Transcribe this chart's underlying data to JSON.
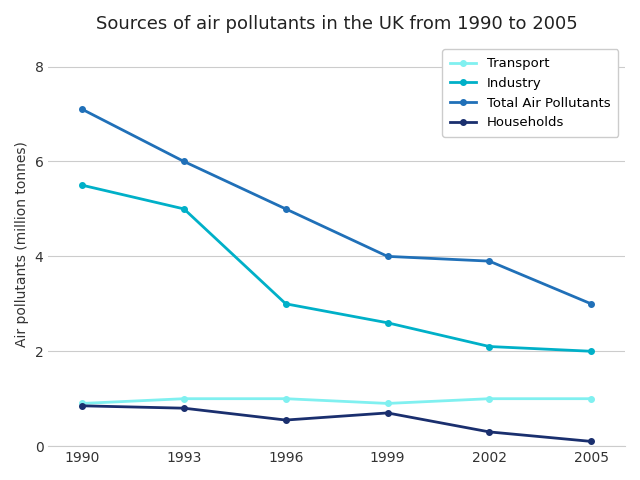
{
  "title": "Sources of air pollutants in the UK from 1990 to 2005",
  "xlabel": "",
  "ylabel": "Air pollutants (million tonnes)",
  "years": [
    1990,
    1993,
    1996,
    1999,
    2002,
    2005
  ],
  "series": [
    {
      "label": "Transport",
      "color": "#80f0f0",
      "values": [
        0.9,
        1.0,
        1.0,
        0.9,
        1.0,
        1.0
      ]
    },
    {
      "label": "Industry",
      "color": "#00b0c8",
      "values": [
        5.5,
        5.0,
        3.0,
        2.6,
        2.1,
        2.0
      ]
    },
    {
      "label": "Total Air Pollutants",
      "color": "#2070b8",
      "values": [
        7.1,
        6.0,
        5.0,
        4.0,
        3.9,
        3.0
      ]
    },
    {
      "label": "Households",
      "color": "#1a2f6e",
      "values": [
        0.85,
        0.8,
        0.55,
        0.7,
        0.3,
        0.1
      ]
    }
  ],
  "ylim": [
    0,
    8.5
  ],
  "yticks": [
    0,
    2,
    4,
    6,
    8
  ],
  "background_color": "#ffffff",
  "grid_color": "#cccccc",
  "title_fontsize": 13,
  "axis_label_fontsize": 10,
  "legend_fontsize": 9.5,
  "tick_fontsize": 10
}
